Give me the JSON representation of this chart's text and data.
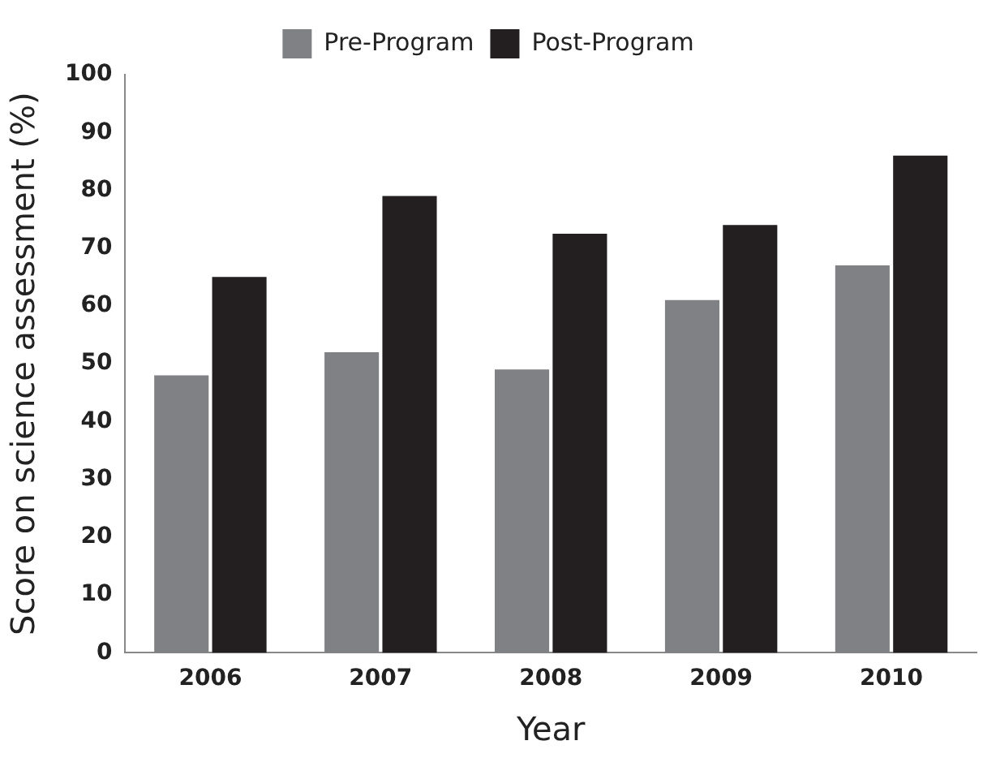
{
  "chart_data": {
    "type": "bar",
    "xlabel": "Year",
    "ylabel": "Score on science assessment (%)",
    "categories": [
      "2006",
      "2007",
      "2008",
      "2009",
      "2010"
    ],
    "series": [
      {
        "name": "Pre-Program",
        "color": "#808184",
        "values": [
          48,
          52,
          49,
          61,
          67
        ]
      },
      {
        "name": "Post-Program",
        "color": "#231f20",
        "values": [
          65,
          79,
          72.5,
          74,
          86
        ]
      }
    ],
    "ylim": [
      0,
      100
    ],
    "yticks": [
      0,
      10,
      20,
      30,
      40,
      50,
      60,
      70,
      80,
      90,
      100
    ],
    "grid": false,
    "legend": "top"
  }
}
